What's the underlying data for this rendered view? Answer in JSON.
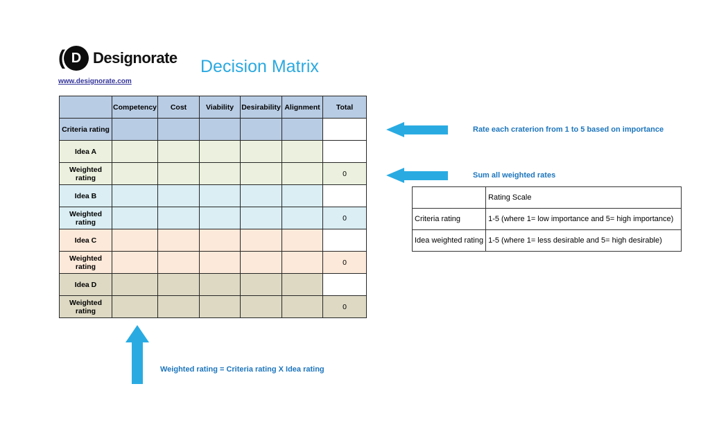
{
  "header": {
    "logo_text": "Designorate",
    "logo_letter": "D",
    "website_link": "www.designorate.com",
    "title": "Decision Matrix"
  },
  "colors": {
    "arrow_cyan": "#29ABE2",
    "title_blue": "#2BA9E0",
    "annotation_blue": "#1C75BC",
    "link_blue": "#333399",
    "header_blue": "#B8CCE4",
    "idea_a_green": "#EBF1DE",
    "idea_b_blue": "#DAEEF3",
    "idea_c_peach": "#FDE9D9",
    "idea_d_tan": "#DDD9C3"
  },
  "matrix": {
    "columns": [
      "",
      "Competency",
      "Cost",
      "Viability",
      "Desirability",
      "Alignment",
      "Total"
    ],
    "rows": [
      {
        "label": "Criteria rating",
        "color": "#B8CCE4",
        "cells": [
          "",
          "",
          "",
          "",
          ""
        ],
        "total": "",
        "total_on_row_color": false
      },
      {
        "label": "Idea A",
        "color": "#EBF1DE",
        "cells": [
          "",
          "",
          "",
          "",
          ""
        ],
        "total": "",
        "total_on_row_color": false
      },
      {
        "label": "Weighted rating",
        "color": "#EBF1DE",
        "cells": [
          "",
          "",
          "",
          "",
          ""
        ],
        "total": "0",
        "total_on_row_color": true
      },
      {
        "label": "Idea B",
        "color": "#DAEEF3",
        "cells": [
          "",
          "",
          "",
          "",
          ""
        ],
        "total": "",
        "total_on_row_color": false
      },
      {
        "label": "Weighted rating",
        "color": "#DAEEF3",
        "cells": [
          "",
          "",
          "",
          "",
          ""
        ],
        "total": "0",
        "total_on_row_color": true
      },
      {
        "label": "Idea C",
        "color": "#FDE9D9",
        "cells": [
          "",
          "",
          "",
          "",
          ""
        ],
        "total": "",
        "total_on_row_color": false
      },
      {
        "label": "Weighted rating",
        "color": "#FDE9D9",
        "cells": [
          "",
          "",
          "",
          "",
          ""
        ],
        "total": "0",
        "total_on_row_color": true
      },
      {
        "label": "Idea D",
        "color": "#DDD9C3",
        "cells": [
          "",
          "",
          "",
          "",
          ""
        ],
        "total": "",
        "total_on_row_color": false
      },
      {
        "label": "Weighted rating",
        "color": "#DDD9C3",
        "cells": [
          "",
          "",
          "",
          "",
          ""
        ],
        "total": "0",
        "total_on_row_color": true
      }
    ]
  },
  "annotations": {
    "criteria": "Rate each craterion from 1 to 5 based on importance",
    "sum": "Sum all weighted rates",
    "formula": "Weighted rating = Criteria rating X Idea rating"
  },
  "rating_scale": {
    "title": "Rating Scale",
    "rows": [
      {
        "label": "Criteria rating",
        "description": "1-5 (where 1= low importance and 5= high importance)"
      },
      {
        "label": "Idea weighted rating",
        "description": "1-5 (where 1= less desirable and 5= high desirable)"
      }
    ]
  }
}
